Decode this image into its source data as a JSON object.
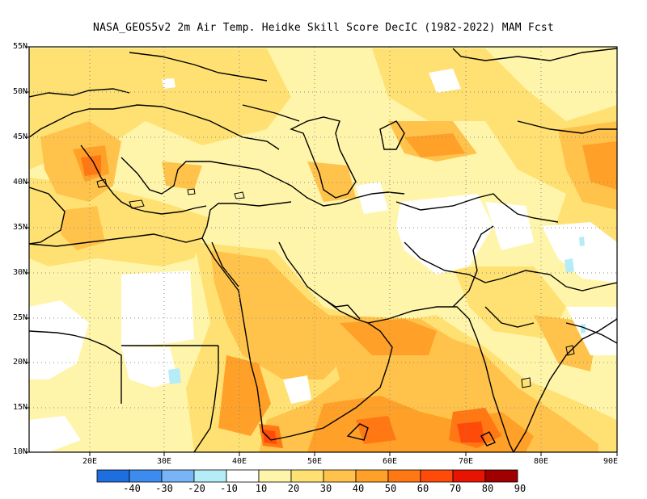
{
  "title": "NASA_GEOS5v2  2m Air Temp. Heidke Skill Score DecIC (1982-2022) MAM Fcst",
  "lat_labels": [
    "55N",
    "50N",
    "45N",
    "40N",
    "35N",
    "30N",
    "25N",
    "20N",
    "15N",
    "10N"
  ],
  "lon_labels": [
    "20E",
    "30E",
    "40E",
    "50E",
    "60E",
    "70E",
    "80E",
    "90E"
  ],
  "colorbar": {
    "labels": [
      "-40",
      "-30",
      "-20",
      "-10",
      "10",
      "20",
      "30",
      "40",
      "50",
      "60",
      "70",
      "80",
      "90"
    ],
    "colors": [
      "#1e6ee0",
      "#3c8cf0",
      "#78b4f8",
      "#b4ecf8",
      "#ffffff",
      "#fff5aa",
      "#ffe173",
      "#ffc34b",
      "#ffa028",
      "#ff7814",
      "#ff4b0a",
      "#e61400",
      "#a00000"
    ]
  }
}
